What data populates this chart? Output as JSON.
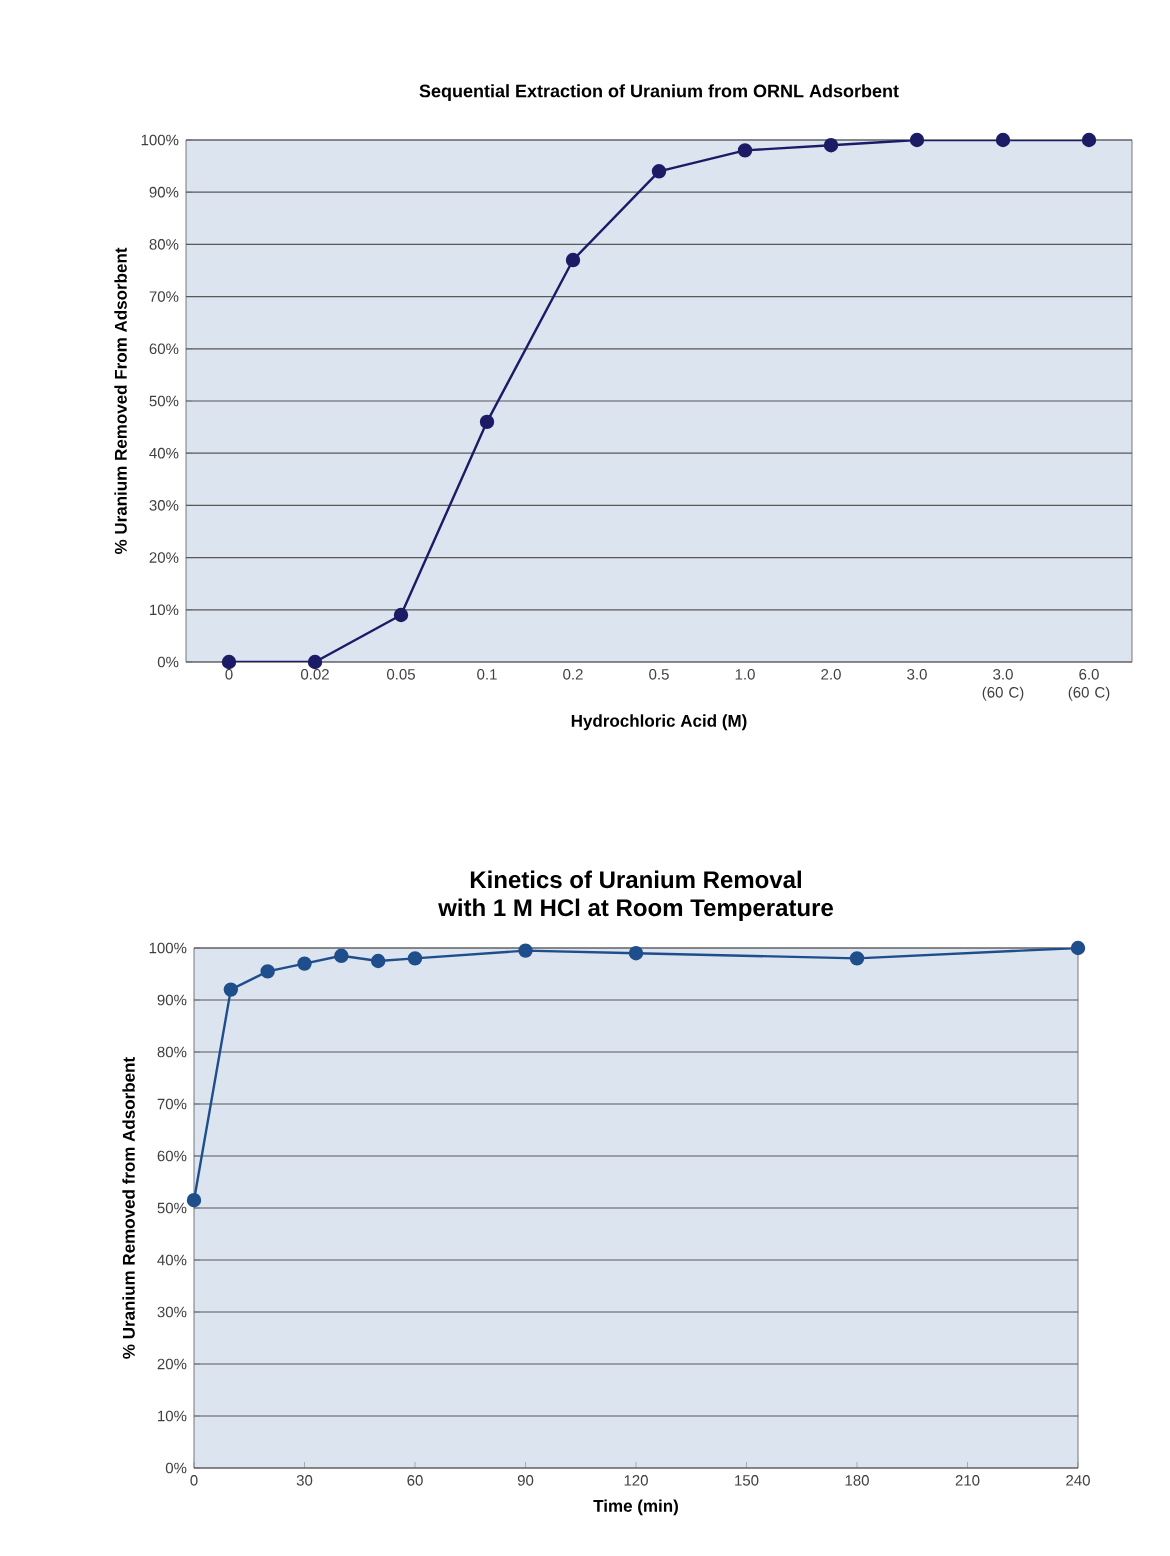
{
  "chart_data": [
    {
      "type": "line",
      "title": "Sequential Extraction of Uranium from ORNL Adsorbent",
      "xlabel": "Hydrochloric  Acid (M)",
      "ylabel": "% Uranium  Removed From Adsorbent",
      "categories": [
        "0",
        "0.02",
        "0.05",
        "0.1",
        "0.2",
        "0.5",
        "1.0",
        "2.0",
        "3.0",
        "3.0 (60 C)",
        "6.0 (60 C)"
      ],
      "series": [
        {
          "color": "#1c1c66",
          "values": [
            0,
            0,
            9,
            46,
            77,
            94,
            98,
            99,
            100,
            100,
            100
          ]
        }
      ],
      "ylim": [
        0,
        100
      ],
      "yticks": [
        {
          "value": 0,
          "label": "0%"
        },
        {
          "value": 10,
          "label": "10%"
        },
        {
          "value": 20,
          "label": "20%"
        },
        {
          "value": 30,
          "label": "30%"
        },
        {
          "value": 40,
          "label": "40%"
        },
        {
          "value": 50,
          "label": "50%"
        },
        {
          "value": 60,
          "label": "60%"
        },
        {
          "value": 70,
          "label": "70%"
        },
        {
          "value": 80,
          "label": "80%"
        },
        {
          "value": 90,
          "label": "90%"
        },
        {
          "value": 100,
          "label": "100%"
        }
      ],
      "grid": "y",
      "marker": "circle"
    },
    {
      "type": "line",
      "title": "Kinetics of Uranium Removal\nwith 1 M HCl at Room Temperature",
      "xlabel": "Time (min)",
      "ylabel": "% Uranium Removed from Adsorbent",
      "x": [
        0,
        10,
        20,
        30,
        40,
        50,
        60,
        90,
        120,
        180,
        240
      ],
      "series": [
        {
          "color": "#1f4e8c",
          "values": [
            51.5,
            92,
            95.5,
            97,
            98.5,
            97.5,
            98,
            99.5,
            99,
            98,
            100
          ]
        }
      ],
      "xlim": [
        0,
        240
      ],
      "xticks": [
        0,
        30,
        60,
        90,
        120,
        150,
        180,
        210,
        240
      ],
      "ylim": [
        0,
        100
      ],
      "yticks": [
        {
          "value": 0,
          "label": "0%"
        },
        {
          "value": 10,
          "label": "10%"
        },
        {
          "value": 20,
          "label": "20%"
        },
        {
          "value": 30,
          "label": "30%"
        },
        {
          "value": 40,
          "label": "40%"
        },
        {
          "value": 50,
          "label": "50%"
        },
        {
          "value": 60,
          "label": "60%"
        },
        {
          "value": 70,
          "label": "70%"
        },
        {
          "value": 80,
          "label": "80%"
        },
        {
          "value": 90,
          "label": "90%"
        },
        {
          "value": 100,
          "label": "100%"
        }
      ],
      "grid": "y",
      "marker": "circle"
    }
  ]
}
